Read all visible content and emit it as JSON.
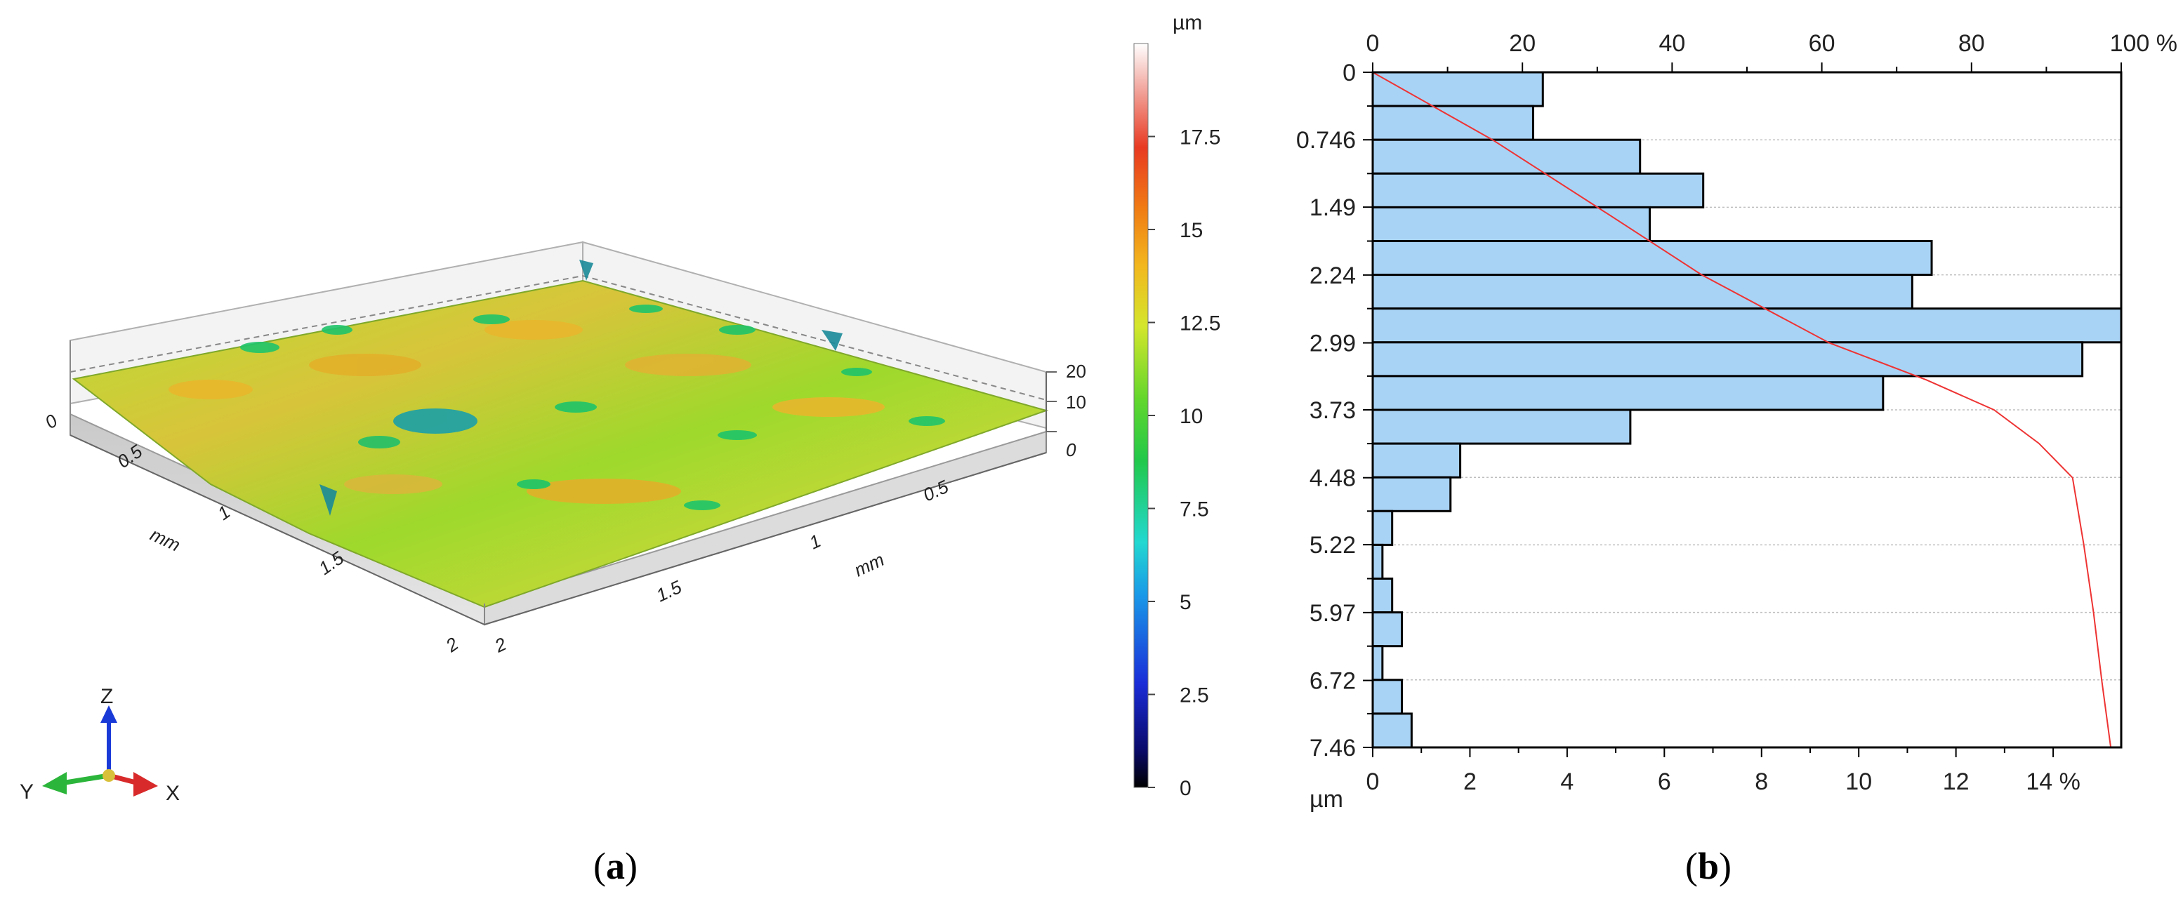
{
  "panel_a": {
    "caption_letter": "a",
    "surface_axis": {
      "left_ticks": [
        "0",
        "0.5",
        "1",
        "1.5",
        "2"
      ],
      "left_unit": "mm",
      "right_ticks": [
        "2",
        "0.5",
        "1",
        "1.5",
        "2"
      ],
      "right_unit": "mm",
      "z_ticks": [
        "20",
        "10",
        "0"
      ]
    },
    "colorbar": {
      "unit": "µm",
      "ticks": [
        "17.5",
        "15",
        "12.5",
        "10",
        "7.5",
        "5",
        "2.5",
        "0"
      ],
      "range": [
        0,
        20
      ]
    },
    "triad": {
      "z": "Z",
      "y": "Y",
      "x": "X"
    },
    "colors": {
      "surface_main": "#9ed92c",
      "surface_warm": "#e8b72c",
      "surface_cool": "#1fc46a",
      "pit": "#1ba0a8"
    }
  },
  "panel_b": {
    "caption_letter": "b"
  },
  "chart_data": {
    "type": "bar",
    "orientation": "horizontal",
    "left_axis": {
      "label": "µm",
      "ticks": [
        "0",
        "0.746",
        "1.49",
        "2.24",
        "2.99",
        "3.73",
        "4.48",
        "5.22",
        "5.97",
        "6.72",
        "7.46"
      ],
      "range": [
        0,
        7.46
      ]
    },
    "bottom_axis": {
      "ticks": [
        "0",
        "2",
        "4",
        "6",
        "8",
        "10",
        "12",
        "14 %"
      ],
      "range": [
        0,
        15.4
      ]
    },
    "top_axis": {
      "ticks": [
        "0",
        "20",
        "40",
        "60",
        "80",
        "100 %"
      ],
      "range": [
        0,
        100
      ]
    },
    "bins": 20,
    "values": [
      3.5,
      3.3,
      5.5,
      6.8,
      5.7,
      11.5,
      11.1,
      15.4,
      14.6,
      10.5,
      5.3,
      1.8,
      1.6,
      0.4,
      0.2,
      0.4,
      0.6,
      0.2,
      0.6,
      0.8
    ],
    "cumulative_curve": {
      "depth": [
        0,
        0.746,
        1.49,
        2.24,
        2.99,
        3.4,
        3.73,
        4.1,
        4.48,
        5.22,
        5.97,
        6.72,
        7.46
      ],
      "percent": [
        0,
        16,
        30,
        44,
        61,
        74,
        83,
        89,
        93.5,
        95,
        96.3,
        97.4,
        98.6
      ]
    },
    "colors": {
      "bar_fill": "#a9d3f5",
      "bar_edge": "#000000",
      "curve": "#ee3333"
    },
    "grid": true
  }
}
